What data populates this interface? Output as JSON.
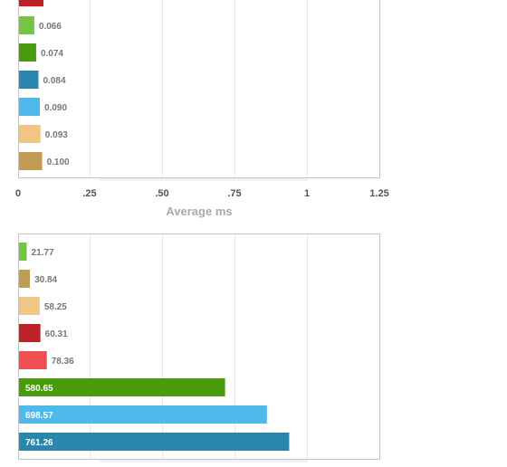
{
  "colors": {
    "red": "#bb2227",
    "light_green": "#76c442",
    "green": "#4a9a0e",
    "teal": "#2a86ad",
    "light_blue": "#4fb9ea",
    "tan": "#f0c585",
    "brown": "#c29b55",
    "salmon": "#ef4e52",
    "grid": "#e6e6e6",
    "frame": "#c2c2c2"
  },
  "chart_data": [
    {
      "type": "bar",
      "orientation": "horizontal",
      "xlabel": "Average ms",
      "xlim": [
        0,
        1.25
      ],
      "x_ticks": [
        "0",
        ".25",
        ".50",
        ".75",
        "1",
        "1.25"
      ],
      "bars": [
        {
          "value": 0.066,
          "label": "0.066",
          "color": "light_green"
        },
        {
          "value": 0.074,
          "label": "0.074",
          "color": "green"
        },
        {
          "value": 0.084,
          "label": "0.084",
          "color": "teal"
        },
        {
          "value": 0.09,
          "label": "0.090",
          "color": "light_blue"
        },
        {
          "value": 0.093,
          "label": "0.093",
          "color": "tan"
        },
        {
          "value": 0.1,
          "label": "0.100",
          "color": "brown"
        }
      ],
      "partially_visible_bar": {
        "color": "red",
        "note_value_cut_off": true
      }
    },
    {
      "type": "bar",
      "orientation": "horizontal",
      "xlim": [
        0,
        1000
      ],
      "bars": [
        {
          "value": 21.77,
          "label": "21.77",
          "color": "light_green"
        },
        {
          "value": 30.84,
          "label": "30.84",
          "color": "brown"
        },
        {
          "value": 58.25,
          "label": "58.25",
          "color": "tan"
        },
        {
          "value": 60.31,
          "label": "60.31",
          "color": "red"
        },
        {
          "value": 78.36,
          "label": "78.36",
          "color": "salmon"
        },
        {
          "value": 580.65,
          "label": "580.65",
          "color": "green"
        },
        {
          "value": 698.57,
          "label": "698.57",
          "color": "light_blue"
        },
        {
          "value": 761.26,
          "label": "761.26",
          "color": "teal"
        }
      ]
    }
  ]
}
